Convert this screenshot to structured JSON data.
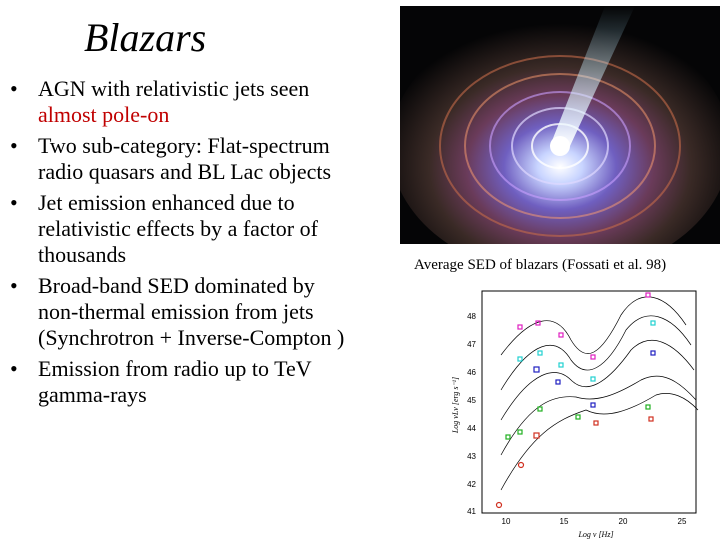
{
  "slide": {
    "title": "Blazars",
    "bullets": [
      {
        "text": "AGN with relativistic jets seen",
        "highlight": "almost pole-on"
      },
      {
        "text": "Two sub-category: Flat-spectrum radio quasars and BL Lac objects"
      },
      {
        "text": "Jet emission enhanced due to relativistic effects by a factor of thousands"
      },
      {
        "text": "Broad-band SED dominated by non-thermal emission from jets (Synchrotron + Inverse-Compton )"
      },
      {
        "text": "Emission from radio up to TeV gamma-rays"
      }
    ],
    "bullet_symbol": "•",
    "caption": "Average SED of blazars (Fossati et al. 98)"
  },
  "sed_plot": {
    "ylabel": "Log νLν  [erg s⁻¹]",
    "xlabel": "Log ν  [Hz]",
    "y_ticks": [
      "41",
      "42",
      "43",
      "44",
      "45",
      "46",
      "47",
      "48"
    ],
    "x_ticks": [
      "10",
      "15",
      "20",
      "25"
    ]
  },
  "colors": {
    "highlight": "#c00000"
  }
}
